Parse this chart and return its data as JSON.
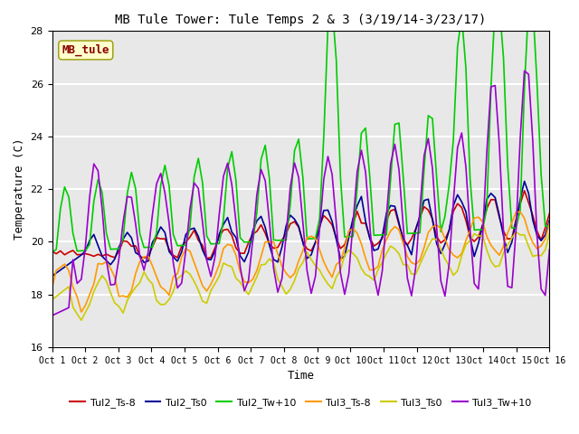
{
  "title": "MB Tule Tower: Tule Temps 2 & 3 (3/19/14-3/23/17)",
  "xlabel": "Time",
  "ylabel": "Temperature (C)",
  "ylim": [
    16,
    28
  ],
  "xlim": [
    0,
    15
  ],
  "xtick_labels": [
    "Oct 1",
    "Oct 2",
    "Oct 3",
    "Oct 4",
    "Oct 5",
    "Oct 6",
    "Oct 7",
    "Oct 8",
    "Oct 9",
    "Oct 10",
    "Oct 11",
    "Oct 12",
    "Oct 13",
    "Oct 14",
    "Oct 15",
    "Oct 16"
  ],
  "bg_color": "#e8e8e8",
  "annotation_text": "MB_tule",
  "annotation_color": "#8b0000",
  "annotation_bg": "#ffffcc",
  "series": {
    "Tul2_Ts-8": {
      "color": "#cc0000",
      "lw": 1.2
    },
    "Tul2_Ts0": {
      "color": "#000099",
      "lw": 1.2
    },
    "Tul2_Tw+10": {
      "color": "#00cc00",
      "lw": 1.2
    },
    "Tul3_Ts-8": {
      "color": "#ff9900",
      "lw": 1.2
    },
    "Tul3_Ts0": {
      "color": "#cccc00",
      "lw": 1.2
    },
    "Tul3_Tw+10": {
      "color": "#9900cc",
      "lw": 1.2
    }
  }
}
